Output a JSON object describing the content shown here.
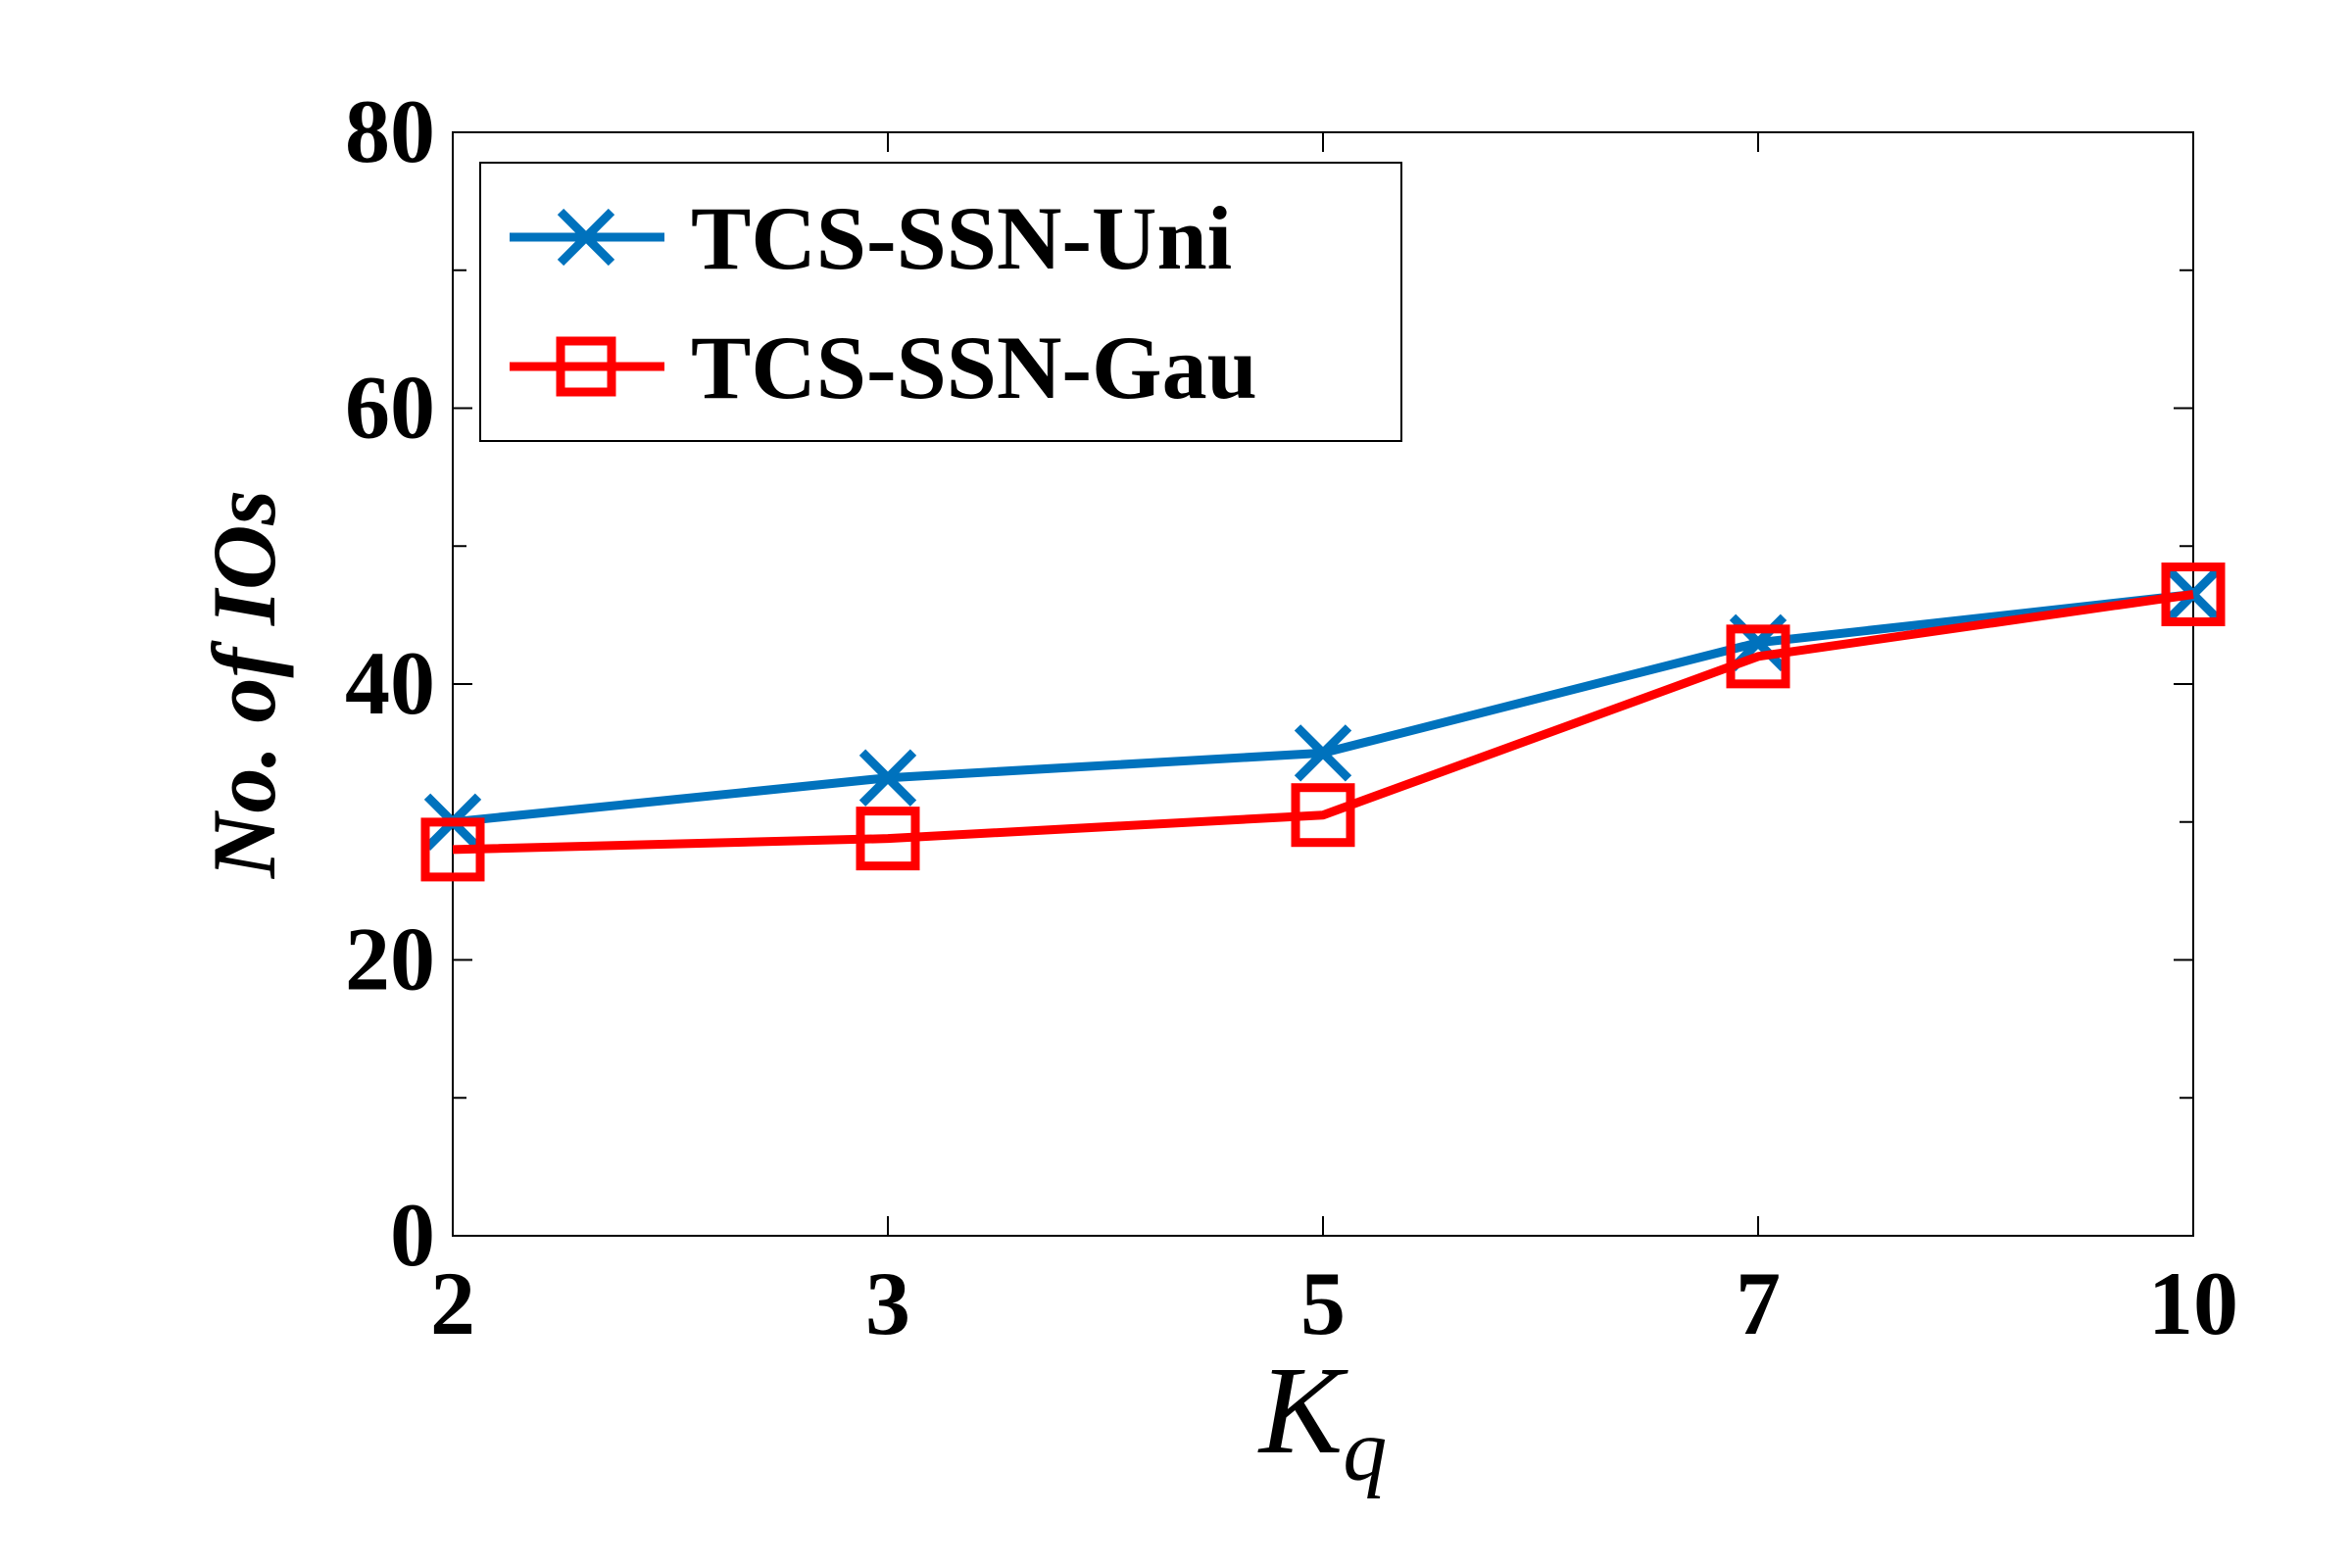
{
  "chart_data": {
    "type": "line",
    "categories": [
      "2",
      "3",
      "5",
      "7",
      "10"
    ],
    "xlabel": "K",
    "xlabel_subscript": "q",
    "ylabel": "No. of IOs",
    "ylim": [
      0,
      80
    ],
    "yticks": [
      "0",
      "20",
      "40",
      "60",
      "80"
    ],
    "grid": false,
    "legend_position": "top-left",
    "series": [
      {
        "name": "TCS-SSN-Uni",
        "values": [
          30,
          33.2,
          35,
          43,
          46.5
        ],
        "color": "#0072BD",
        "marker": "x"
      },
      {
        "name": "TCS-SSN-Gau",
        "values": [
          28,
          28.8,
          30.5,
          42,
          46.5
        ],
        "color": "#FF0000",
        "marker": "square"
      }
    ]
  }
}
